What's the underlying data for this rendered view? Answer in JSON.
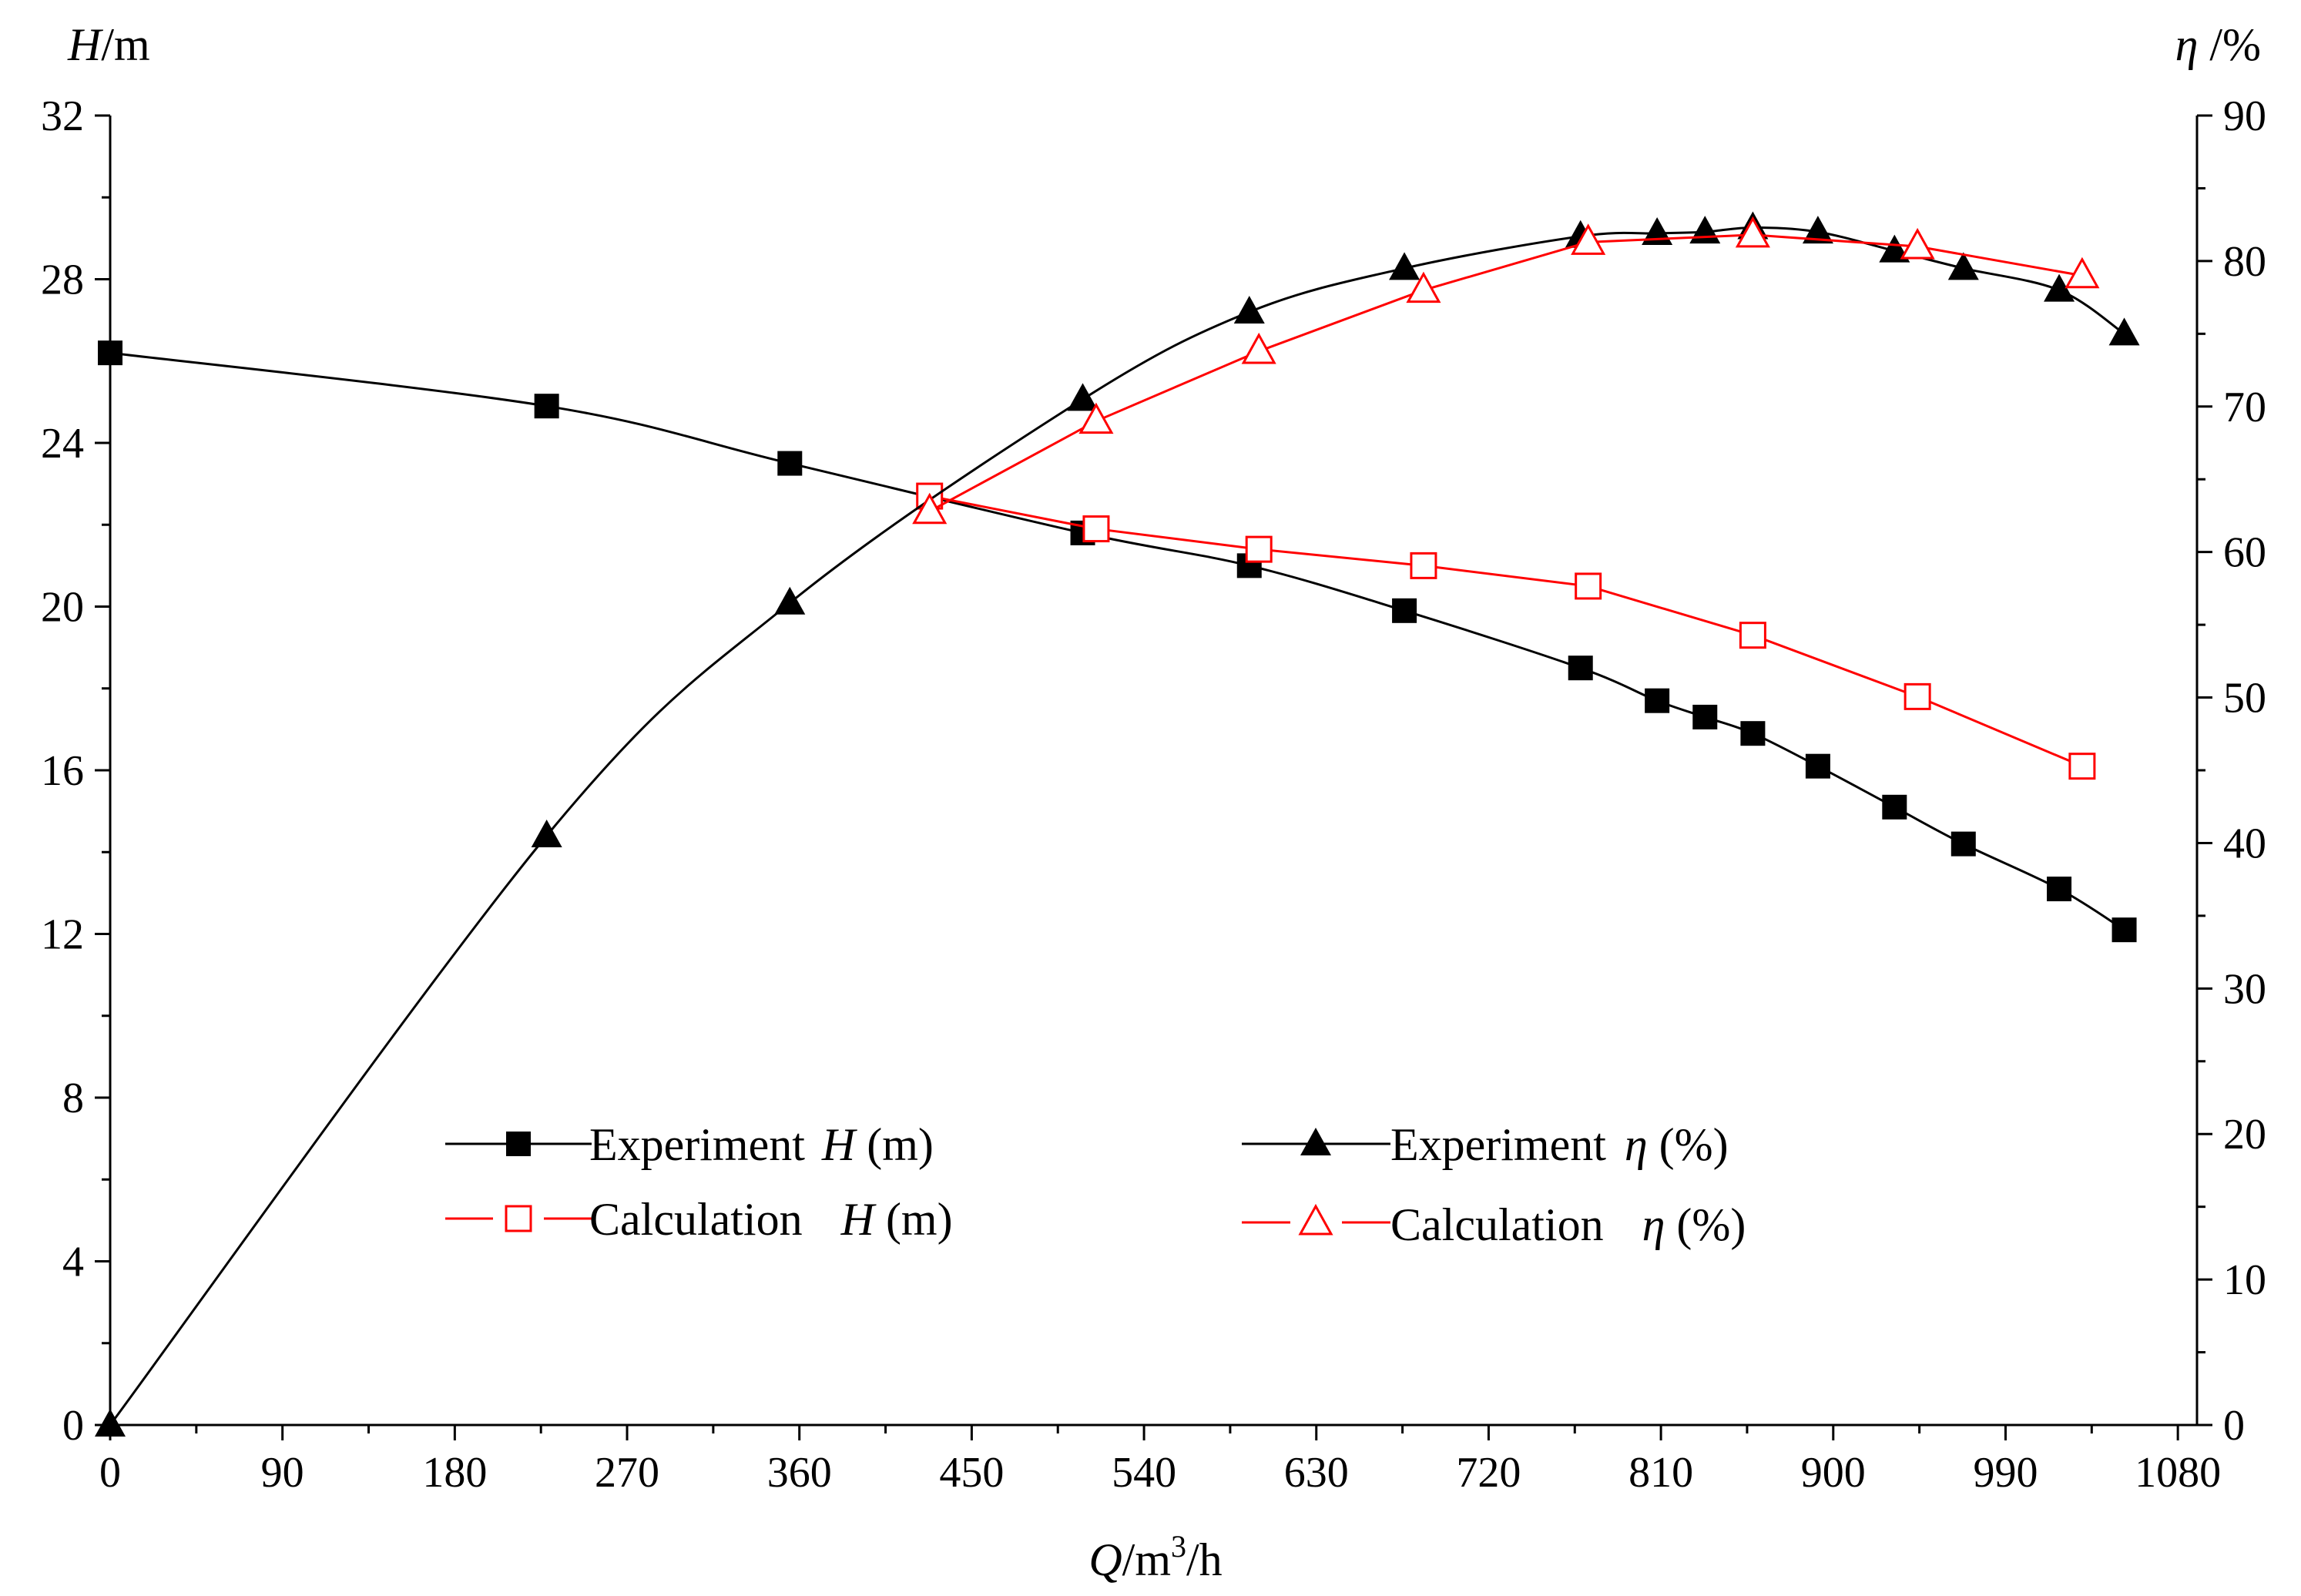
{
  "chart_data": {
    "type": "line",
    "xlabel": {
      "main": "Q",
      "unit": "/m",
      "sup": "3",
      "tail": "/h"
    },
    "ylabel_left": {
      "main": "H",
      "unit": "/m"
    },
    "ylabel_right": {
      "main": "η",
      "unit": " /%"
    },
    "xlim": [
      0,
      1090
    ],
    "ylim_left": [
      0,
      32
    ],
    "ylim_right": [
      0,
      90
    ],
    "x_ticks": [
      "0",
      "90",
      "180",
      "270",
      "360",
      "450",
      "540",
      "630",
      "720",
      "810",
      "900",
      "990",
      "1080"
    ],
    "x_tick_values": [
      0,
      90,
      180,
      270,
      360,
      450,
      540,
      630,
      720,
      810,
      900,
      990,
      1080
    ],
    "y_left_ticks": [
      "0",
      "4",
      "8",
      "12",
      "16",
      "20",
      "24",
      "28",
      "32"
    ],
    "y_left_tick_values": [
      0,
      4,
      8,
      12,
      16,
      20,
      24,
      28,
      32
    ],
    "y_right_ticks": [
      "0",
      "10",
      "20",
      "30",
      "40",
      "50",
      "60",
      "70",
      "80",
      "90"
    ],
    "y_right_tick_values": [
      0,
      10,
      20,
      30,
      40,
      50,
      60,
      70,
      80,
      90
    ],
    "series": [
      {
        "name": "Experiment H (m)",
        "legend_main": "Experiment",
        "legend_var": "H",
        "legend_unit": " (m)",
        "axis": "left",
        "color": "#000000",
        "marker": "square-filled",
        "x": [
          0,
          228,
          355,
          508,
          595,
          676,
          768,
          808,
          833,
          858,
          892,
          932,
          968,
          1018,
          1052
        ],
        "y": [
          26.2,
          24.9,
          23.5,
          21.8,
          21.0,
          19.9,
          18.5,
          17.7,
          17.3,
          16.9,
          16.1,
          15.1,
          14.2,
          13.1,
          12.1
        ]
      },
      {
        "name": "Calculation H (m)",
        "legend_main": "Calculation",
        "legend_var": "H",
        "legend_unit": " (m)",
        "axis": "left",
        "color": "#ff0000",
        "marker": "square-open",
        "x": [
          428,
          515,
          600,
          686,
          772,
          858,
          944,
          1030
        ],
        "y": [
          22.7,
          21.9,
          21.4,
          21.0,
          20.5,
          19.3,
          17.8,
          16.1
        ]
      },
      {
        "name": "Experiment η (%)",
        "legend_main": "Experiment",
        "legend_var": "η",
        "legend_unit": " (%)",
        "axis": "right",
        "color": "#000000",
        "marker": "triangle-filled",
        "x": [
          0,
          228,
          355,
          508,
          595,
          676,
          768,
          808,
          833,
          858,
          892,
          932,
          968,
          1018,
          1052
        ],
        "y": [
          0,
          40.5,
          56.5,
          70.5,
          76.5,
          79.5,
          81.7,
          81.9,
          82.0,
          82.3,
          82.0,
          80.7,
          79.5,
          78.0,
          75.0
        ]
      },
      {
        "name": "Calculation η (%)",
        "legend_main": "Calculation",
        "legend_var": "η",
        "legend_unit": " (%)",
        "axis": "right",
        "color": "#ff0000",
        "marker": "triangle-open",
        "x": [
          428,
          515,
          600,
          686,
          772,
          858,
          944,
          1030
        ],
        "y": [
          62.8,
          69.0,
          73.8,
          78.0,
          81.3,
          81.8,
          81.0,
          79.0
        ]
      }
    ],
    "legend_position": "lower-center"
  }
}
